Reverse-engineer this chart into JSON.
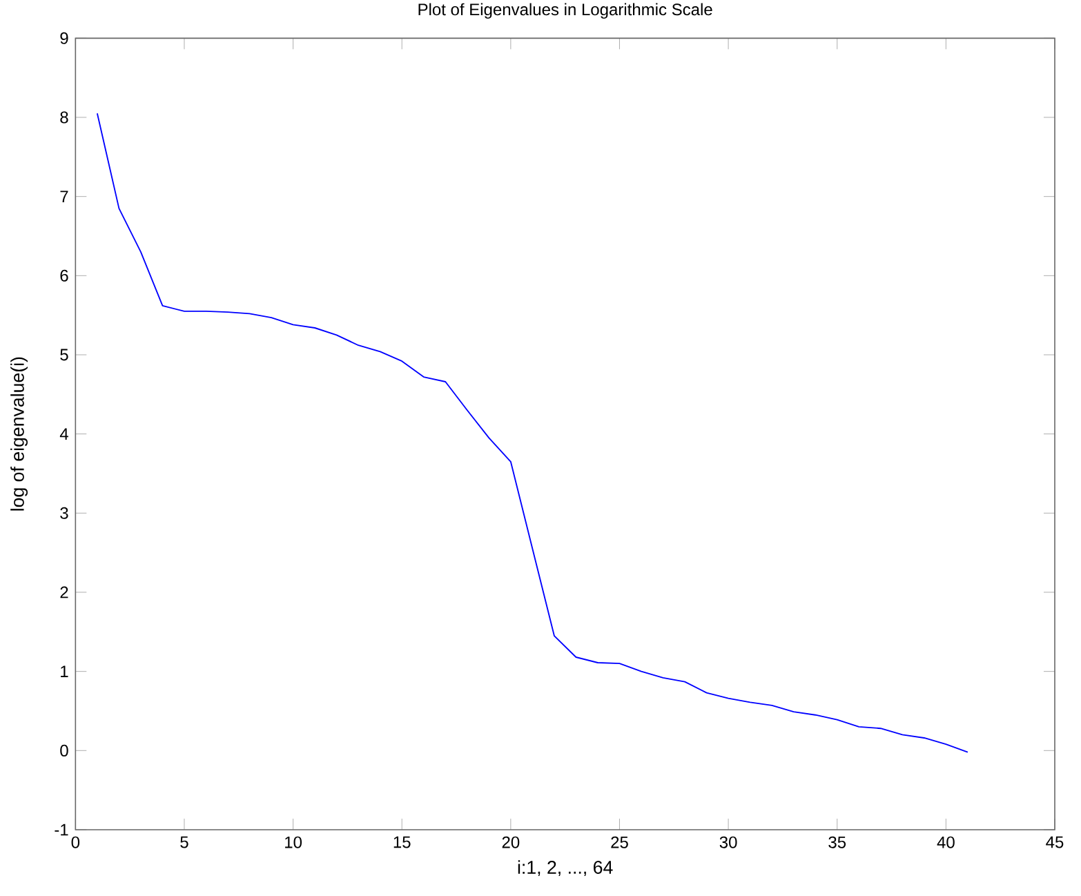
{
  "chart_data": {
    "type": "line",
    "title": "Plot of Eigenvalues in Logarithmic Scale",
    "xlabel": "i:1, 2, ..., 64",
    "ylabel": "log of eigenvalue(i)",
    "xlim": [
      0,
      45
    ],
    "xticks": [
      0,
      5,
      10,
      15,
      20,
      25,
      30,
      35,
      40,
      45
    ],
    "ylim": [
      -1,
      9
    ],
    "yticks": [
      -1,
      0,
      1,
      2,
      3,
      4,
      5,
      6,
      7,
      8,
      9
    ],
    "grid": false,
    "marker": "none",
    "line_style": "solid",
    "x": [
      1,
      2,
      3,
      4,
      5,
      6,
      7,
      8,
      9,
      10,
      11,
      12,
      13,
      14,
      15,
      16,
      17,
      18,
      19,
      20,
      21,
      22,
      23,
      24,
      25,
      26,
      27,
      28,
      29,
      30,
      31,
      32,
      33,
      34,
      35,
      36,
      37,
      38,
      39,
      40,
      41
    ],
    "series": [
      {
        "color": "#0000ff",
        "values": [
          8.05,
          6.85,
          6.3,
          5.62,
          5.55,
          5.55,
          5.54,
          5.52,
          5.47,
          5.38,
          5.34,
          5.25,
          5.12,
          5.04,
          4.92,
          4.72,
          4.66,
          4.3,
          3.95,
          3.65,
          2.55,
          1.45,
          1.18,
          1.11,
          1.1,
          1.0,
          0.92,
          0.87,
          0.73,
          0.66,
          0.61,
          0.57,
          0.49,
          0.45,
          0.39,
          0.3,
          0.28,
          0.2,
          0.16,
          0.08,
          -0.02
        ]
      }
    ]
  }
}
